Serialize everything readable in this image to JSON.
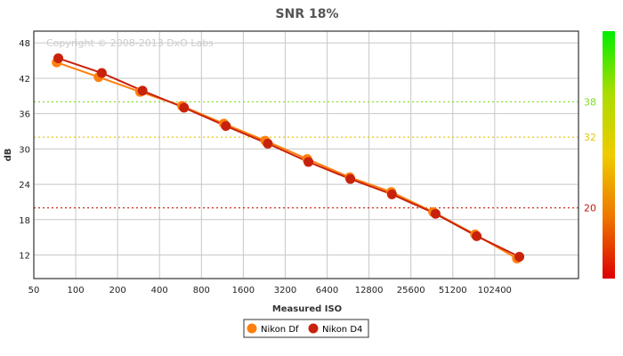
{
  "chart_data": {
    "type": "line",
    "title": "SNR 18%",
    "xlabel": "Measured ISO",
    "ylabel": "dB",
    "x_scale": "log2",
    "xlim": [
      50,
      409600
    ],
    "ylim": [
      8,
      50
    ],
    "x_ticks": [
      50,
      100,
      200,
      400,
      800,
      1600,
      3200,
      6400,
      12800,
      25600,
      51200,
      102400
    ],
    "x_tick_labels": [
      "50",
      "100",
      "200",
      "400",
      "800",
      "1600",
      "3200",
      "6400",
      "12800",
      "25600",
      "51200",
      "102400"
    ],
    "y_ticks": [
      12,
      18,
      24,
      30,
      36,
      42,
      48
    ],
    "y_tick_labels": [
      "12",
      "18",
      "24",
      "30",
      "36",
      "42",
      "48"
    ],
    "grid": true,
    "copyright": "Copyright © 2008-2013 DxO Labs",
    "reference_lines": [
      {
        "value": 38,
        "label": "38",
        "color": "#7ddc1f"
      },
      {
        "value": 32,
        "label": "32",
        "color": "#e6c619"
      },
      {
        "value": 20,
        "label": "20",
        "color": "#c41a0c"
      }
    ],
    "colorbar": {
      "stops": [
        "#00ee00",
        "#aadd00",
        "#eecc00",
        "#ee7700",
        "#dd0000"
      ]
    },
    "series": [
      {
        "name": "Nikon Df",
        "color": "#ff7f0e",
        "points": [
          {
            "x": 73,
            "y": 44.7
          },
          {
            "x": 146,
            "y": 42.2
          },
          {
            "x": 290,
            "y": 39.7
          },
          {
            "x": 580,
            "y": 37.3
          },
          {
            "x": 1160,
            "y": 34.3
          },
          {
            "x": 2300,
            "y": 31.4
          },
          {
            "x": 4600,
            "y": 28.3
          },
          {
            "x": 9300,
            "y": 25.2
          },
          {
            "x": 18500,
            "y": 22.7
          },
          {
            "x": 37000,
            "y": 19.3
          },
          {
            "x": 74000,
            "y": 15.5
          },
          {
            "x": 148000,
            "y": 11.4
          }
        ]
      },
      {
        "name": "Nikon D4",
        "color": "#c8220c",
        "points": [
          {
            "x": 75,
            "y": 45.4
          },
          {
            "x": 154,
            "y": 42.9
          },
          {
            "x": 302,
            "y": 39.9
          },
          {
            "x": 600,
            "y": 37.0
          },
          {
            "x": 1200,
            "y": 33.9
          },
          {
            "x": 2400,
            "y": 30.9
          },
          {
            "x": 4700,
            "y": 27.8
          },
          {
            "x": 9400,
            "y": 24.9
          },
          {
            "x": 18700,
            "y": 22.3
          },
          {
            "x": 38500,
            "y": 19.0
          },
          {
            "x": 76000,
            "y": 15.2
          },
          {
            "x": 154000,
            "y": 11.7
          }
        ]
      }
    ]
  }
}
